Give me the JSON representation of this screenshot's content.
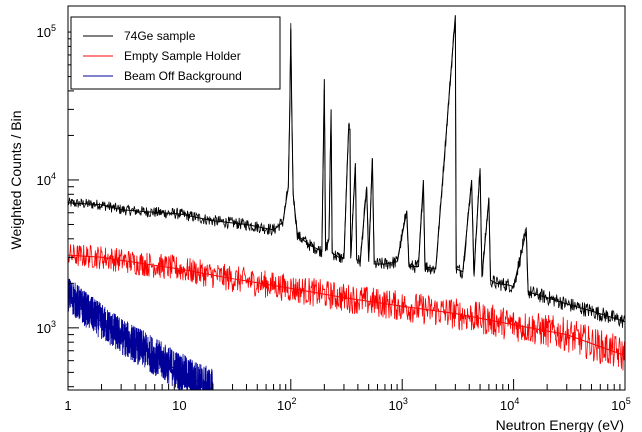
{
  "chart_data": {
    "type": "line",
    "xlabel": "Neutron Energy (eV)",
    "ylabel": "Weighted Counts / Bin",
    "xscale": "log",
    "yscale": "log",
    "xlim": [
      1,
      100000
    ],
    "ylim": [
      380,
      150000
    ],
    "x_ticks": [
      {
        "value": 1,
        "label": "1"
      },
      {
        "value": 10,
        "label": "10"
      },
      {
        "value": 100,
        "label": "10",
        "exp": "2"
      },
      {
        "value": 1000,
        "label": "10",
        "exp": "3"
      },
      {
        "value": 10000,
        "label": "10",
        "exp": "4"
      },
      {
        "value": 100000,
        "label": "10",
        "exp": "5"
      }
    ],
    "y_ticks": [
      {
        "value": 1000,
        "label": "10",
        "exp": "3"
      },
      {
        "value": 10000,
        "label": "10",
        "exp": "4"
      },
      {
        "value": 100000,
        "label": "10",
        "exp": "5"
      }
    ],
    "grid": false,
    "legend_position": "top-left",
    "series": [
      {
        "name": "74Ge sample",
        "color": "#000000",
        "points": [
          [
            1,
            7000
          ],
          [
            2,
            6800
          ],
          [
            3,
            6300
          ],
          [
            5,
            6100
          ],
          [
            10,
            5900
          ],
          [
            20,
            5300
          ],
          [
            40,
            5000
          ],
          [
            70,
            4600
          ],
          [
            85,
            5200
          ],
          [
            95,
            9000
          ],
          [
            98,
            30000
          ],
          [
            100,
            105000
          ],
          [
            102,
            30000
          ],
          [
            105,
            8000
          ],
          [
            115,
            4200
          ],
          [
            150,
            3600
          ],
          [
            190,
            3300
          ],
          [
            200,
            48000
          ],
          [
            205,
            3300
          ],
          [
            220,
            4000
          ],
          [
            230,
            30000
          ],
          [
            235,
            3200
          ],
          [
            270,
            3000
          ],
          [
            300,
            2950
          ],
          [
            330,
            22000
          ],
          [
            340,
            22000
          ],
          [
            345,
            2950
          ],
          [
            380,
            13000
          ],
          [
            390,
            2900
          ],
          [
            420,
            2800
          ],
          [
            480,
            9000
          ],
          [
            500,
            2800
          ],
          [
            540,
            14000
          ],
          [
            560,
            2700
          ],
          [
            700,
            2700
          ],
          [
            900,
            2800
          ],
          [
            1100,
            6200
          ],
          [
            1150,
            2600
          ],
          [
            1400,
            2600
          ],
          [
            1550,
            10000
          ],
          [
            1600,
            2600
          ],
          [
            2000,
            2500
          ],
          [
            3000,
            130000
          ],
          [
            3050,
            2500
          ],
          [
            3500,
            2400
          ],
          [
            4200,
            10000
          ],
          [
            4400,
            2300
          ],
          [
            5000,
            12000
          ],
          [
            5200,
            2200
          ],
          [
            6000,
            7500
          ],
          [
            6200,
            2100
          ],
          [
            7000,
            2000
          ],
          [
            9000,
            1950
          ],
          [
            10000,
            1900
          ],
          [
            13000,
            4500
          ],
          [
            13500,
            1750
          ],
          [
            20000,
            1600
          ],
          [
            30000,
            1450
          ],
          [
            50000,
            1300
          ],
          [
            70000,
            1200
          ],
          [
            100000,
            1100
          ]
        ]
      },
      {
        "name": "Empty Sample Holder",
        "color": "#ff0000",
        "points": [
          [
            1,
            3100
          ],
          [
            2,
            3000
          ],
          [
            5,
            2700
          ],
          [
            10,
            2500
          ],
          [
            30,
            2150
          ],
          [
            100,
            1850
          ],
          [
            300,
            1600
          ],
          [
            1000,
            1400
          ],
          [
            3000,
            1250
          ],
          [
            10000,
            1050
          ],
          [
            30000,
            900
          ],
          [
            100000,
            650
          ]
        ]
      },
      {
        "name": "Beam Off Background",
        "color": "#000099",
        "points": [
          [
            1,
            1700
          ],
          [
            1.5,
            1300
          ],
          [
            2,
            1100
          ],
          [
            3,
            880
          ],
          [
            5,
            700
          ],
          [
            8,
            560
          ],
          [
            12,
            470
          ],
          [
            16,
            420
          ],
          [
            20,
            385
          ]
        ]
      }
    ]
  }
}
